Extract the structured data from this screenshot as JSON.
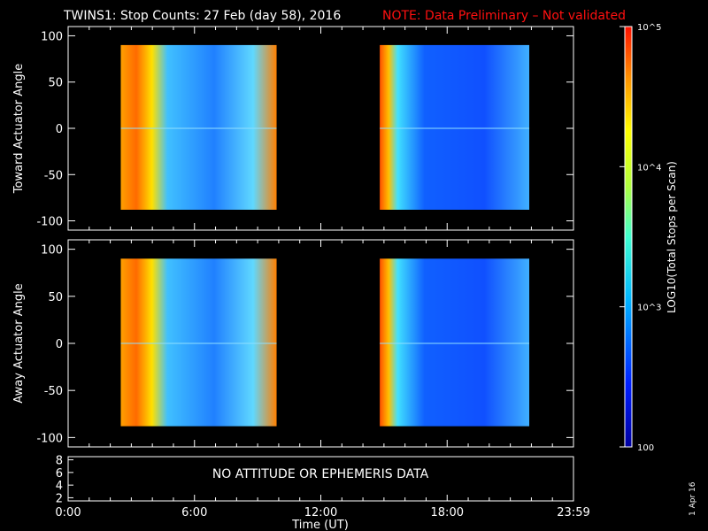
{
  "header": {
    "title": "TWINS1: Stop Counts: 27 Feb (day  58), 2016",
    "note": "NOTE: Data Preliminary – Not validated",
    "note_color": "#ff1010"
  },
  "panels": {
    "top": {
      "ylabel": "Toward Actuator Angle"
    },
    "bottom": {
      "ylabel": "Away Actuator Angle"
    },
    "attitude": {
      "message": "NO ATTITUDE OR EPHEMERIS DATA"
    }
  },
  "xaxis": {
    "label": "Time (UT)",
    "ticks": [
      "0:00",
      "6:00",
      "12:00",
      "18:00",
      "23:59"
    ]
  },
  "colorbar": {
    "label": "LOG10(Total Stops per Scan)",
    "ticks": [
      "10^5",
      "10^4",
      "10^3",
      "100"
    ]
  },
  "footer": {
    "date": "1 Apr 16"
  },
  "chart_data": [
    {
      "type": "heatmap",
      "name": "toward",
      "ylabel": "Toward Actuator Angle",
      "xlabel": "",
      "xlim": [
        0,
        24
      ],
      "ylim": [
        -110,
        110
      ],
      "yticks": [
        100,
        50,
        0,
        -50,
        -100
      ],
      "segments": [
        {
          "start": 2.5,
          "end": 9.9
        },
        {
          "start": 14.8,
          "end": 21.9
        }
      ],
      "yrange": [
        -88,
        90
      ],
      "colorscale": "log",
      "clim": [
        100,
        100000
      ]
    },
    {
      "type": "heatmap",
      "name": "away",
      "ylabel": "Away Actuator Angle",
      "xlabel": "Time (UT)",
      "xlim": [
        0,
        24
      ],
      "ylim": [
        -110,
        110
      ],
      "yticks": [
        100,
        50,
        0,
        -50,
        -100
      ],
      "segments": [
        {
          "start": 2.5,
          "end": 9.9
        },
        {
          "start": 14.8,
          "end": 21.9
        }
      ],
      "yrange": [
        -88,
        90
      ],
      "colorscale": "log",
      "clim": [
        100,
        100000
      ]
    },
    {
      "type": "line",
      "name": "attitude",
      "ylim": [
        1.5,
        8.5
      ],
      "yticks": [
        8,
        6,
        4,
        2
      ],
      "series": []
    }
  ]
}
